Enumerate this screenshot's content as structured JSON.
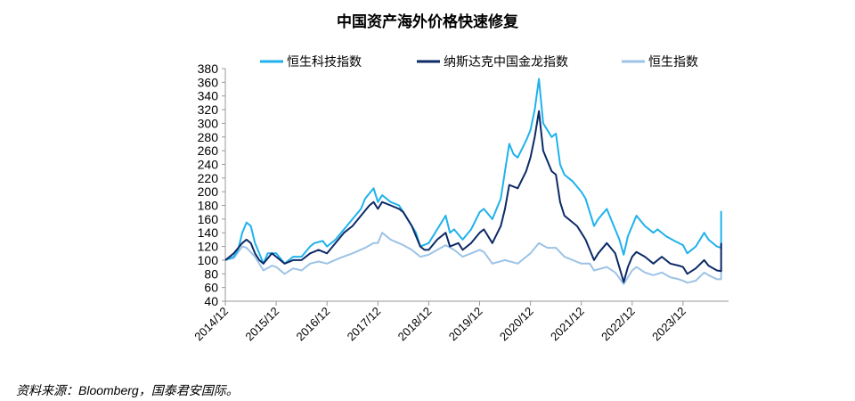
{
  "chart_data": {
    "type": "line",
    "title": "中国资产海外价格快速修复",
    "source": "资料来源：Bloomberg，国泰君安国际。",
    "ylim": [
      40,
      380
    ],
    "yticks": [
      40,
      60,
      80,
      100,
      120,
      140,
      160,
      180,
      200,
      220,
      240,
      260,
      280,
      300,
      320,
      340,
      360,
      380
    ],
    "xlim": [
      "2014-12",
      "2024-09"
    ],
    "xticks": [
      "2014/12",
      "2015/12",
      "2016/12",
      "2017/12",
      "2018/12",
      "2019/12",
      "2020/12",
      "2021/12",
      "2022/12",
      "2023/12"
    ],
    "grid": false,
    "legend": "top",
    "series": [
      {
        "name": "恒生科技指数",
        "color": "#1fb2ec",
        "points": [
          [
            "2014-12",
            100
          ],
          [
            "2015-02",
            105
          ],
          [
            "2015-03",
            115
          ],
          [
            "2015-04",
            140
          ],
          [
            "2015-05",
            155
          ],
          [
            "2015-06",
            150
          ],
          [
            "2015-07",
            125
          ],
          [
            "2015-08",
            110
          ],
          [
            "2015-09",
            95
          ],
          [
            "2015-10",
            110
          ],
          [
            "2015-12",
            110
          ],
          [
            "2016-02",
            95
          ],
          [
            "2016-04",
            105
          ],
          [
            "2016-06",
            105
          ],
          [
            "2016-08",
            120
          ],
          [
            "2016-09",
            125
          ],
          [
            "2016-11",
            128
          ],
          [
            "2016-12",
            120
          ],
          [
            "2017-02",
            130
          ],
          [
            "2017-04",
            145
          ],
          [
            "2017-06",
            160
          ],
          [
            "2017-08",
            175
          ],
          [
            "2017-09",
            190
          ],
          [
            "2017-11",
            205
          ],
          [
            "2017-12",
            185
          ],
          [
            "2018-01",
            195
          ],
          [
            "2018-03",
            185
          ],
          [
            "2018-05",
            180
          ],
          [
            "2018-06",
            170
          ],
          [
            "2018-08",
            150
          ],
          [
            "2018-09",
            140
          ],
          [
            "2018-10",
            120
          ],
          [
            "2018-12",
            125
          ],
          [
            "2019-02",
            145
          ],
          [
            "2019-04",
            165
          ],
          [
            "2019-05",
            140
          ],
          [
            "2019-06",
            145
          ],
          [
            "2019-08",
            130
          ],
          [
            "2019-10",
            145
          ],
          [
            "2019-12",
            170
          ],
          [
            "2020-01",
            175
          ],
          [
            "2020-03",
            160
          ],
          [
            "2020-05",
            190
          ],
          [
            "2020-06",
            230
          ],
          [
            "2020-07",
            270
          ],
          [
            "2020-08",
            255
          ],
          [
            "2020-09",
            250
          ],
          [
            "2020-11",
            275
          ],
          [
            "2020-12",
            290
          ],
          [
            "2021-01",
            320
          ],
          [
            "2021-02",
            365
          ],
          [
            "2021-03",
            300
          ],
          [
            "2021-05",
            280
          ],
          [
            "2021-06",
            285
          ],
          [
            "2021-07",
            240
          ],
          [
            "2021-08",
            225
          ],
          [
            "2021-09",
            220
          ],
          [
            "2021-10",
            215
          ],
          [
            "2021-12",
            200
          ],
          [
            "2022-01",
            190
          ],
          [
            "2022-03",
            150
          ],
          [
            "2022-04",
            160
          ],
          [
            "2022-06",
            175
          ],
          [
            "2022-07",
            160
          ],
          [
            "2022-09",
            130
          ],
          [
            "2022-10",
            108
          ],
          [
            "2022-11",
            135
          ],
          [
            "2022-12",
            150
          ],
          [
            "2023-01",
            165
          ],
          [
            "2023-03",
            150
          ],
          [
            "2023-05",
            140
          ],
          [
            "2023-06",
            145
          ],
          [
            "2023-08",
            135
          ],
          [
            "2023-10",
            128
          ],
          [
            "2023-12",
            122
          ],
          [
            "2024-01",
            110
          ],
          [
            "2024-03",
            120
          ],
          [
            "2024-05",
            140
          ],
          [
            "2024-06",
            130
          ],
          [
            "2024-08",
            120
          ],
          [
            "2024-09",
            118
          ],
          [
            "2024-09",
            172
          ]
        ]
      },
      {
        "name": "纳斯达克中国金龙指数",
        "color": "#0d2a66",
        "points": [
          [
            "2014-12",
            100
          ],
          [
            "2015-02",
            110
          ],
          [
            "2015-04",
            125
          ],
          [
            "2015-05",
            130
          ],
          [
            "2015-06",
            125
          ],
          [
            "2015-07",
            110
          ],
          [
            "2015-08",
            100
          ],
          [
            "2015-09",
            95
          ],
          [
            "2015-11",
            110
          ],
          [
            "2015-12",
            105
          ],
          [
            "2016-02",
            95
          ],
          [
            "2016-04",
            100
          ],
          [
            "2016-06",
            100
          ],
          [
            "2016-08",
            110
          ],
          [
            "2016-10",
            115
          ],
          [
            "2016-12",
            110
          ],
          [
            "2017-02",
            125
          ],
          [
            "2017-04",
            140
          ],
          [
            "2017-06",
            150
          ],
          [
            "2017-08",
            165
          ],
          [
            "2017-10",
            180
          ],
          [
            "2017-11",
            185
          ],
          [
            "2017-12",
            175
          ],
          [
            "2018-01",
            185
          ],
          [
            "2018-03",
            180
          ],
          [
            "2018-05",
            175
          ],
          [
            "2018-06",
            170
          ],
          [
            "2018-08",
            150
          ],
          [
            "2018-10",
            120
          ],
          [
            "2018-11",
            115
          ],
          [
            "2018-12",
            115
          ],
          [
            "2019-02",
            130
          ],
          [
            "2019-04",
            140
          ],
          [
            "2019-05",
            120
          ],
          [
            "2019-07",
            125
          ],
          [
            "2019-08",
            115
          ],
          [
            "2019-10",
            125
          ],
          [
            "2019-12",
            140
          ],
          [
            "2020-01",
            145
          ],
          [
            "2020-03",
            125
          ],
          [
            "2020-05",
            150
          ],
          [
            "2020-06",
            175
          ],
          [
            "2020-07",
            210
          ],
          [
            "2020-09",
            205
          ],
          [
            "2020-11",
            230
          ],
          [
            "2020-12",
            250
          ],
          [
            "2021-01",
            280
          ],
          [
            "2021-02",
            318
          ],
          [
            "2021-03",
            260
          ],
          [
            "2021-05",
            230
          ],
          [
            "2021-06",
            225
          ],
          [
            "2021-07",
            185
          ],
          [
            "2021-08",
            165
          ],
          [
            "2021-09",
            160
          ],
          [
            "2021-11",
            150
          ],
          [
            "2021-12",
            140
          ],
          [
            "2022-01",
            130
          ],
          [
            "2022-03",
            100
          ],
          [
            "2022-04",
            110
          ],
          [
            "2022-06",
            125
          ],
          [
            "2022-08",
            110
          ],
          [
            "2022-10",
            68
          ],
          [
            "2022-11",
            90
          ],
          [
            "2022-12",
            105
          ],
          [
            "2023-01",
            112
          ],
          [
            "2023-03",
            105
          ],
          [
            "2023-05",
            95
          ],
          [
            "2023-07",
            105
          ],
          [
            "2023-09",
            95
          ],
          [
            "2023-11",
            92
          ],
          [
            "2023-12",
            90
          ],
          [
            "2024-01",
            80
          ],
          [
            "2024-03",
            88
          ],
          [
            "2024-05",
            100
          ],
          [
            "2024-06",
            92
          ],
          [
            "2024-08",
            85
          ],
          [
            "2024-09",
            84
          ],
          [
            "2024-09",
            125
          ]
        ]
      },
      {
        "name": "恒生指数",
        "color": "#9cc3e6",
        "points": [
          [
            "2014-12",
            100
          ],
          [
            "2015-02",
            103
          ],
          [
            "2015-04",
            120
          ],
          [
            "2015-05",
            118
          ],
          [
            "2015-07",
            105
          ],
          [
            "2015-09",
            85
          ],
          [
            "2015-11",
            92
          ],
          [
            "2015-12",
            90
          ],
          [
            "2016-02",
            80
          ],
          [
            "2016-04",
            88
          ],
          [
            "2016-06",
            85
          ],
          [
            "2016-08",
            95
          ],
          [
            "2016-10",
            98
          ],
          [
            "2016-12",
            95
          ],
          [
            "2017-03",
            103
          ],
          [
            "2017-06",
            110
          ],
          [
            "2017-09",
            118
          ],
          [
            "2017-11",
            125
          ],
          [
            "2017-12",
            125
          ],
          [
            "2018-01",
            140
          ],
          [
            "2018-03",
            130
          ],
          [
            "2018-06",
            122
          ],
          [
            "2018-08",
            115
          ],
          [
            "2018-10",
            105
          ],
          [
            "2018-12",
            108
          ],
          [
            "2019-02",
            115
          ],
          [
            "2019-04",
            122
          ],
          [
            "2019-06",
            115
          ],
          [
            "2019-08",
            105
          ],
          [
            "2019-10",
            110
          ],
          [
            "2019-12",
            115
          ],
          [
            "2020-01",
            112
          ],
          [
            "2020-03",
            95
          ],
          [
            "2020-06",
            100
          ],
          [
            "2020-09",
            95
          ],
          [
            "2020-11",
            105
          ],
          [
            "2020-12",
            110
          ],
          [
            "2021-02",
            125
          ],
          [
            "2021-04",
            118
          ],
          [
            "2021-06",
            118
          ],
          [
            "2021-08",
            105
          ],
          [
            "2021-10",
            100
          ],
          [
            "2021-12",
            95
          ],
          [
            "2022-02",
            95
          ],
          [
            "2022-03",
            85
          ],
          [
            "2022-06",
            90
          ],
          [
            "2022-08",
            82
          ],
          [
            "2022-10",
            65
          ],
          [
            "2022-11",
            75
          ],
          [
            "2022-12",
            85
          ],
          [
            "2023-01",
            90
          ],
          [
            "2023-03",
            82
          ],
          [
            "2023-05",
            78
          ],
          [
            "2023-07",
            82
          ],
          [
            "2023-09",
            75
          ],
          [
            "2023-11",
            72
          ],
          [
            "2023-12",
            70
          ],
          [
            "2024-01",
            67
          ],
          [
            "2024-03",
            70
          ],
          [
            "2024-05",
            82
          ],
          [
            "2024-06",
            78
          ],
          [
            "2024-08",
            72
          ],
          [
            "2024-09",
            72
          ],
          [
            "2024-09",
            88
          ]
        ]
      }
    ]
  }
}
